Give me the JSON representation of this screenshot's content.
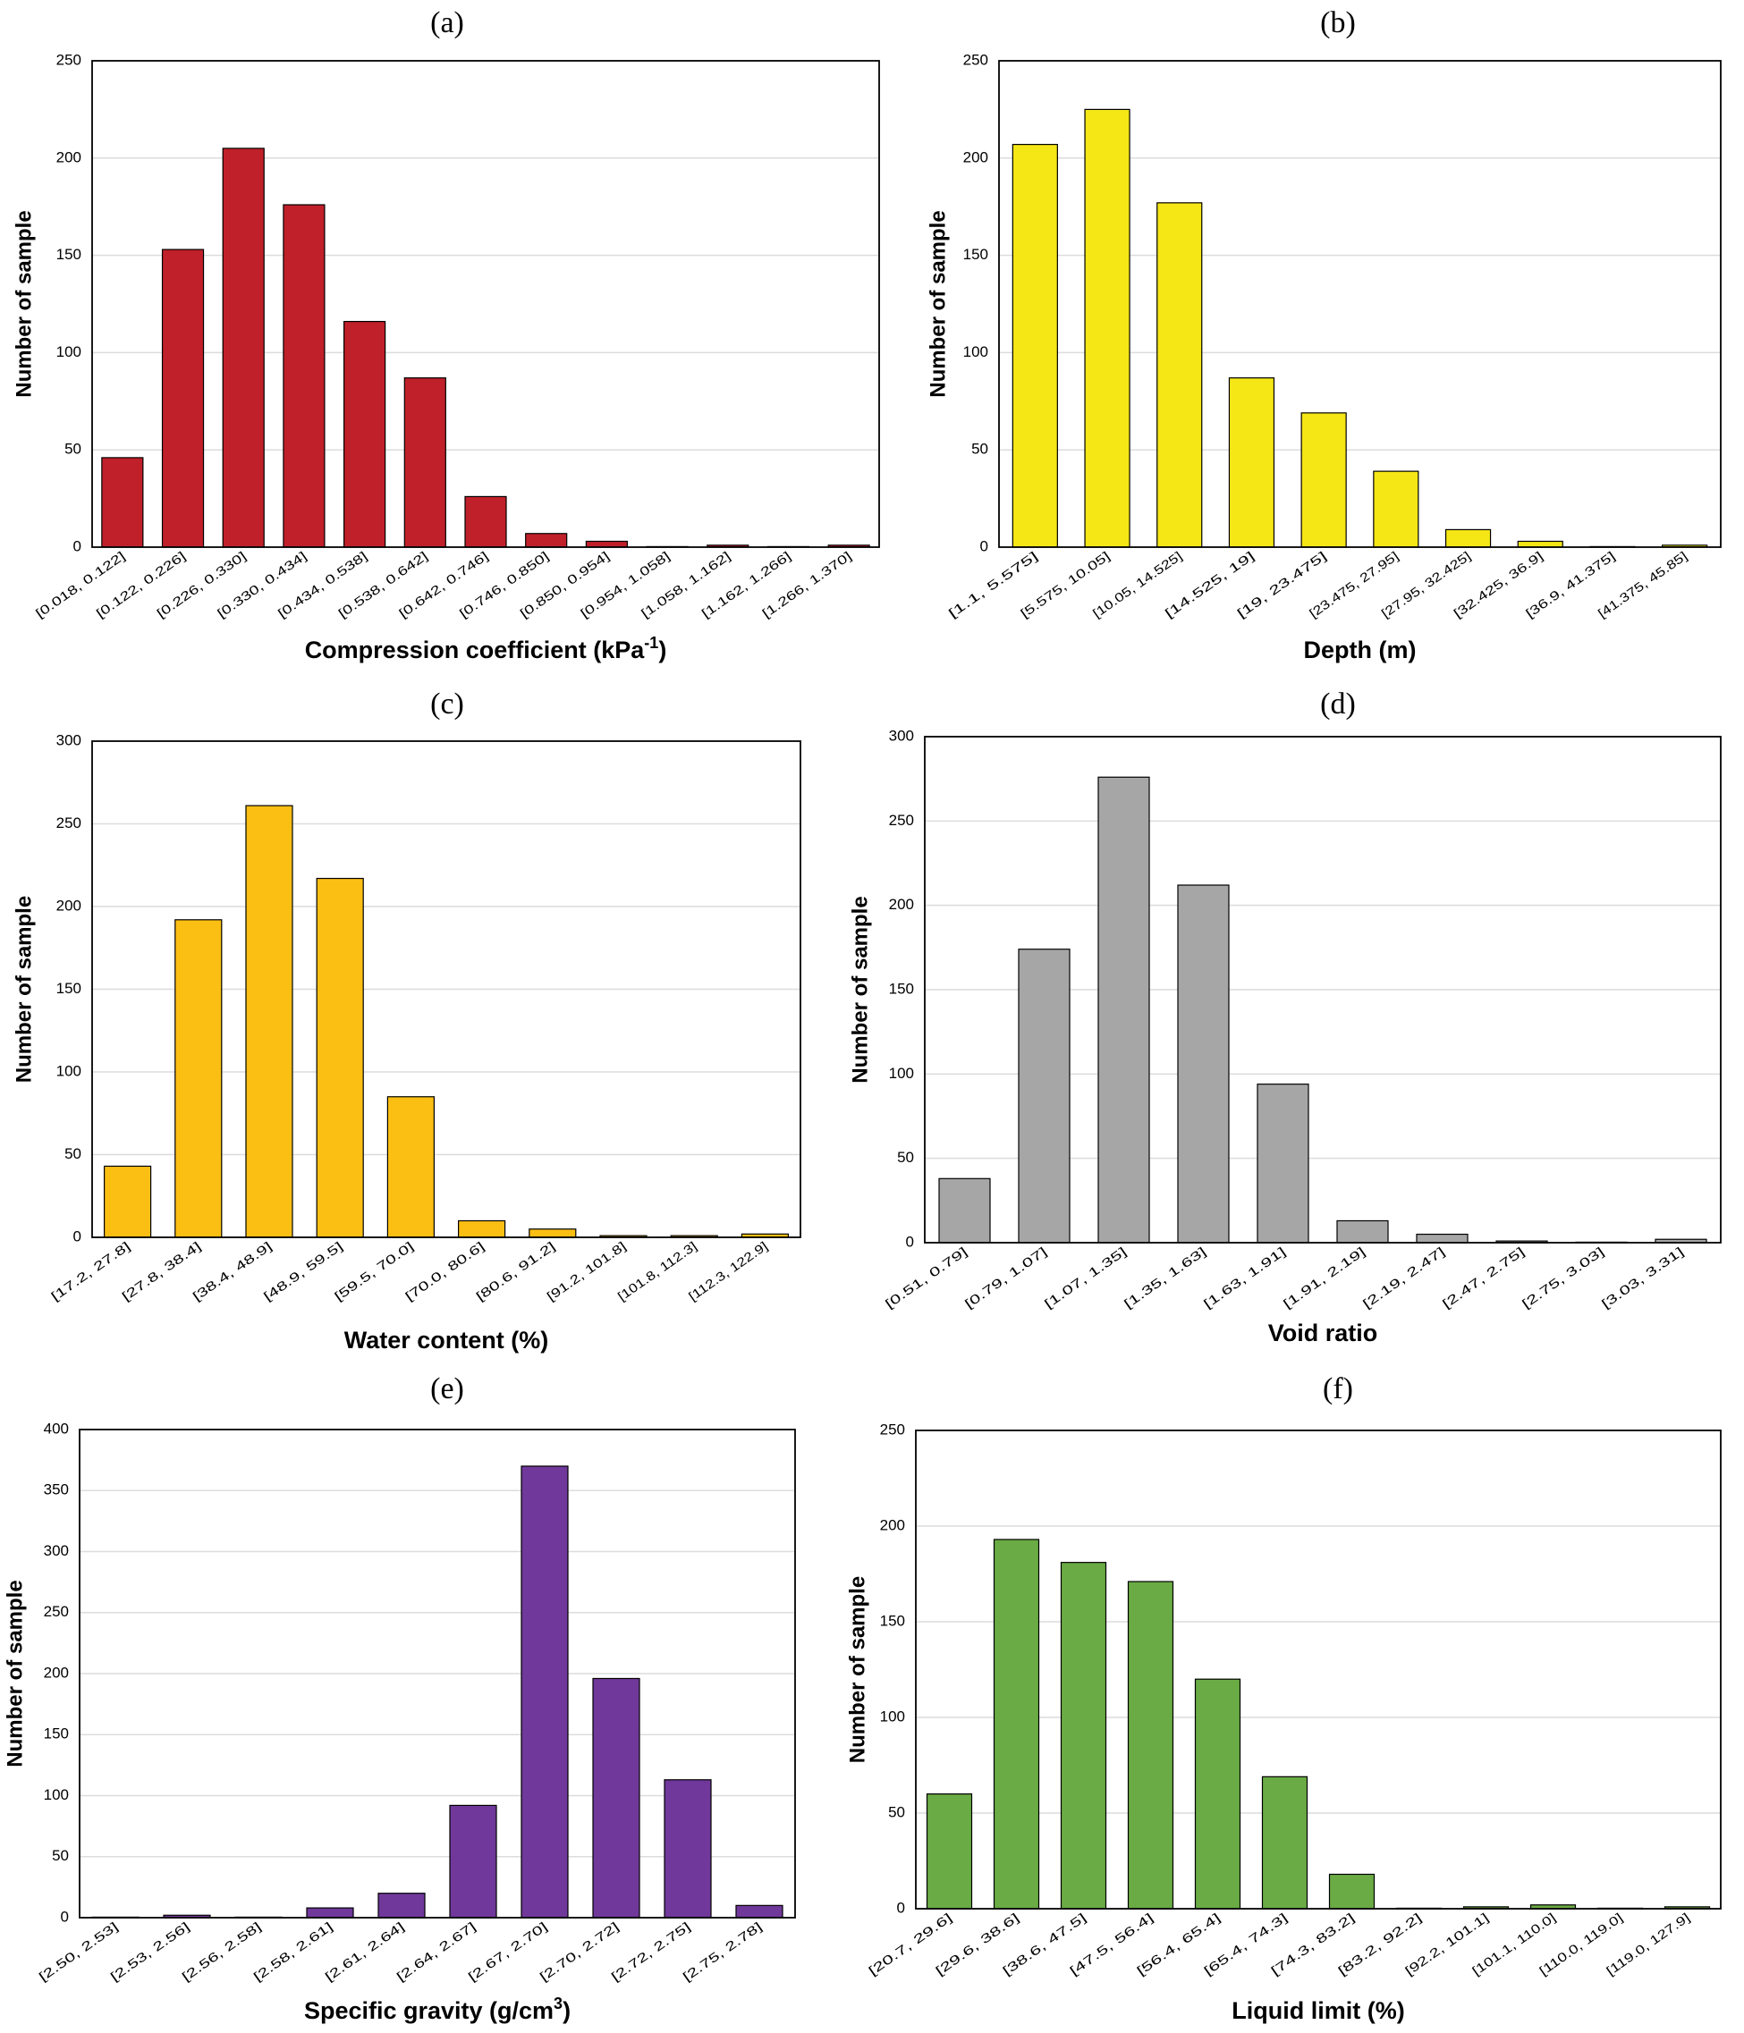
{
  "chart_data": [
    {
      "type": "bar",
      "panel_label": "(a)",
      "categories": [
        "[0.018, 0.122]",
        "[0.122, 0.226]",
        "[0.226, 0.330]",
        "[0.330, 0.434]",
        "[0.434, 0.538]",
        "[0.538, 0.642]",
        "[0.642, 0.746]",
        "[0.746, 0.850]",
        "[0.850, 0.954]",
        "[0.954, 1.058]",
        "[1.058, 1.162]",
        "[1.162, 1.266]",
        "[1.266, 1.370]"
      ],
      "values": [
        46,
        153,
        205,
        176,
        116,
        87,
        26,
        7,
        3,
        0,
        1,
        0,
        1
      ],
      "xlabel": "Compression coefficient (kPa",
      "xlabel_sup": "-1",
      "xlabel_tail": ")",
      "ylabel": "Number of sample",
      "ylim": [
        0,
        250
      ],
      "yticks": [
        "0",
        "50",
        "100",
        "150",
        "200",
        "250"
      ],
      "color": "#c0202a"
    },
    {
      "type": "bar",
      "panel_label": "(b)",
      "categories": [
        "[1.1, 5.575]",
        "[5.575, 10.05]",
        "[10.05, 14.525]",
        "[14.525, 19]",
        "[19, 23.475]",
        "[23.475, 27.95]",
        "[27.95, 32.425]",
        "[32.425, 36.9]",
        "[36.9, 41.375]",
        "[41.375, 45.85]"
      ],
      "values": [
        207,
        225,
        177,
        87,
        69,
        39,
        9,
        3,
        0,
        1
      ],
      "xlabel": "Depth (m)",
      "xlabel_sup": "",
      "xlabel_tail": "",
      "ylabel": "Number of sample",
      "ylim": [
        0,
        250
      ],
      "yticks": [
        "0",
        "50",
        "100",
        "150",
        "200",
        "250"
      ],
      "color": "#f5e616"
    },
    {
      "type": "bar",
      "panel_label": "(c)",
      "categories": [
        "[17.2, 27.8]",
        "[27.8, 38.4]",
        "[38.4, 48.9]",
        "[48.9, 59.5]",
        "[59.5, 70.0]",
        "[70.0, 80.6]",
        "[80.6, 91.2]",
        "[91.2, 101.8]",
        "[101.8, 112.3]",
        "[112.3, 122.9]"
      ],
      "values": [
        43,
        192,
        261,
        217,
        85,
        10,
        5,
        1,
        1,
        2
      ],
      "xlabel": "Water content (%)",
      "xlabel_sup": "",
      "xlabel_tail": "",
      "ylabel": "Number of sample",
      "ylim": [
        0,
        300
      ],
      "yticks": [
        "0",
        "50",
        "100",
        "150",
        "200",
        "250",
        "300"
      ],
      "color": "#fbbf14"
    },
    {
      "type": "bar",
      "panel_label": "(d)",
      "categories": [
        "[0.51, 0.79]",
        "[0.79, 1.07]",
        "[1.07, 1.35]",
        "[1.35, 1.63]",
        "[1.63, 1.91]",
        "[1.91, 2.19]",
        "[2.19, 2.47]",
        "[2.47, 2.75]",
        "[2.75, 3.03]",
        "[3.03, 3.31]"
      ],
      "values": [
        38,
        174,
        276,
        212,
        94,
        13,
        5,
        1,
        0,
        2
      ],
      "xlabel": "Void ratio",
      "xlabel_sup": "",
      "xlabel_tail": "",
      "ylabel": "Number of sample",
      "ylim": [
        0,
        300
      ],
      "yticks": [
        "0",
        "50",
        "100",
        "150",
        "200",
        "250",
        "300"
      ],
      "color": "#a6a6a6"
    },
    {
      "type": "bar",
      "panel_label": "(e)",
      "categories": [
        "[2.50, 2.53]",
        "[2.53, 2.56]",
        "[2.56, 2.58]",
        "[2.58, 2.61]",
        "[2.61, 2.64]",
        "[2.64, 2.67]",
        "[2.67, 2.70]",
        "[2.70, 2.72]",
        "[2.72, 2.75]",
        "[2.75, 2.78]"
      ],
      "values": [
        0,
        2,
        0,
        8,
        20,
        92,
        370,
        196,
        113,
        10
      ],
      "xlabel": "Specific gravity (g/cm",
      "xlabel_sup": "3",
      "xlabel_tail": ")",
      "ylabel": "Number of sample",
      "ylim": [
        0,
        400
      ],
      "yticks": [
        "0",
        "50",
        "100",
        "150",
        "200",
        "250",
        "300",
        "350",
        "400"
      ],
      "color": "#70389a"
    },
    {
      "type": "bar",
      "panel_label": "(f)",
      "categories": [
        "[20.7, 29.6]",
        "[29.6, 38.6]",
        "[38.6, 47.5]",
        "[47.5, 56.4]",
        "[56.4, 65.4]",
        "[65.4, 74.3]",
        "[74.3, 83.2]",
        "[83.2, 92.2]",
        "[92.2, 101.1]",
        "[101.1, 110.0]",
        "[110.0, 119.0]",
        "[119.0, 127.9]"
      ],
      "values": [
        60,
        193,
        181,
        171,
        120,
        69,
        18,
        0,
        1,
        2,
        0,
        1
      ],
      "xlabel": "Liquid limit (%)",
      "xlabel_sup": "",
      "xlabel_tail": "",
      "ylabel": "Number of sample",
      "ylim": [
        0,
        250
      ],
      "yticks": [
        "0",
        "50",
        "100",
        "150",
        "200",
        "250"
      ],
      "color": "#6aab45"
    }
  ]
}
